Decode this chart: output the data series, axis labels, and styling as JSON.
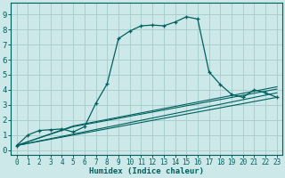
{
  "title": "",
  "xlabel": "Humidex (Indice chaleur)",
  "bg_color": "#cce8e8",
  "grid_color": "#aacece",
  "line_color": "#006060",
  "xlim": [
    -0.5,
    23.5
  ],
  "ylim": [
    -0.3,
    9.8
  ],
  "xticks": [
    0,
    1,
    2,
    3,
    4,
    5,
    6,
    7,
    8,
    9,
    10,
    11,
    12,
    13,
    14,
    15,
    16,
    17,
    18,
    19,
    20,
    21,
    22,
    23
  ],
  "yticks": [
    0,
    1,
    2,
    3,
    4,
    5,
    6,
    7,
    8,
    9
  ],
  "main_x": [
    0,
    1,
    2,
    3,
    4,
    5,
    6,
    7,
    8,
    9,
    10,
    11,
    12,
    13,
    14,
    15,
    16,
    17,
    18,
    19,
    20,
    21,
    22,
    23
  ],
  "main_y": [
    0.3,
    1.0,
    1.3,
    1.35,
    1.4,
    1.2,
    1.55,
    3.1,
    4.4,
    7.4,
    7.9,
    8.25,
    8.3,
    8.25,
    8.5,
    8.85,
    8.7,
    5.2,
    4.35,
    3.7,
    3.5,
    4.0,
    3.8,
    3.5
  ],
  "line2_x": [
    0,
    23
  ],
  "line2_y": [
    0.3,
    3.5
  ],
  "line3_x": [
    0,
    23
  ],
  "line3_y": [
    0.3,
    3.8
  ],
  "line4_x": [
    0,
    5,
    23
  ],
  "line4_y": [
    0.3,
    1.55,
    4.05
  ],
  "line5_x": [
    0,
    5,
    23
  ],
  "line5_y": [
    0.3,
    1.6,
    4.2
  ],
  "xlabel_fontsize": 6.5,
  "tick_fontsize": 5.5,
  "ytick_fontsize": 6.5
}
